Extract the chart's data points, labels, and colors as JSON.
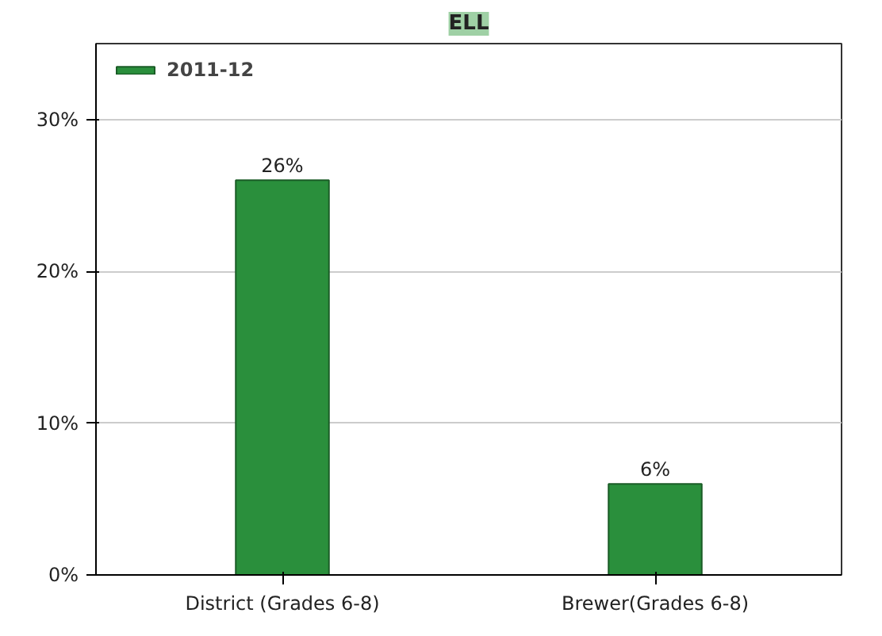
{
  "chart_data": {
    "type": "bar",
    "title": "ELL",
    "categories": [
      "District (Grades 6-8)",
      "Brewer(Grades 6-8)"
    ],
    "series": [
      {
        "name": "2011-12",
        "color": "#2a8f3c",
        "values": [
          26,
          6
        ],
        "value_labels": [
          "26%",
          "6%"
        ]
      }
    ],
    "ylim": [
      0,
      35
    ],
    "yticks": [
      {
        "value": 0,
        "label": "0%"
      },
      {
        "value": 10,
        "label": "10%"
      },
      {
        "value": 20,
        "label": "20%"
      },
      {
        "value": 30,
        "label": "30%"
      }
    ],
    "grid": "y",
    "legend": "top left"
  }
}
